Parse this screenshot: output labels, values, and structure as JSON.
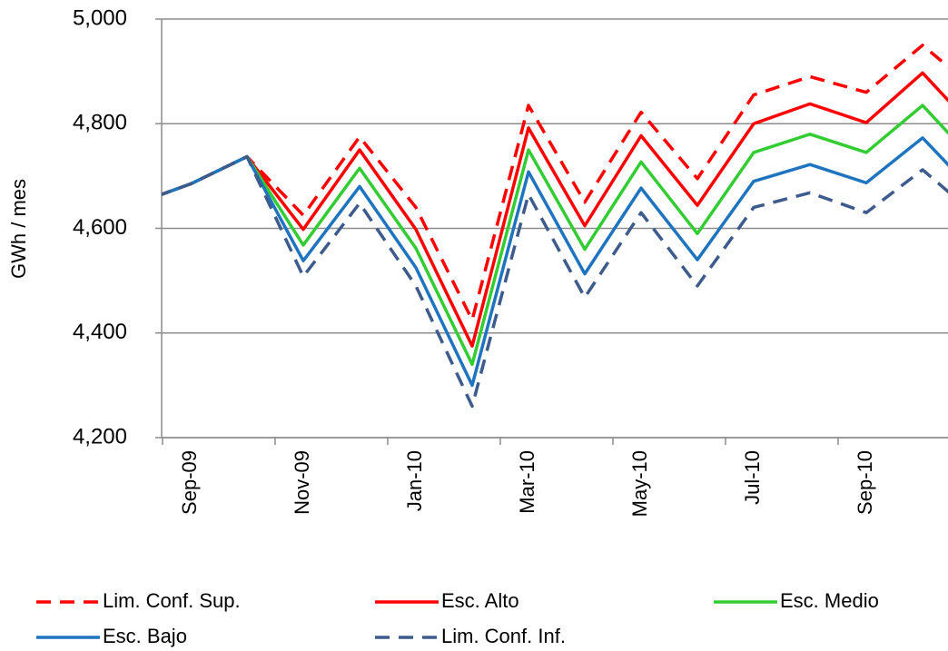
{
  "chart_data": {
    "type": "line",
    "y_label": "GWh / mes",
    "categories": [
      null,
      "Sep-09",
      null,
      "Nov-09",
      null,
      "Jan-10",
      null,
      "Mar-10",
      null,
      "May-10",
      null,
      "Jul-10",
      null,
      "Sep-10",
      null,
      null
    ],
    "series": [
      {
        "name": "Lim. Conf. Sup.",
        "color": "#ff0000",
        "dashed": true,
        "values": [
          4646,
          4685,
          4737,
          4625,
          4775,
          4640,
          4425,
          4835,
          4650,
          4822,
          4695,
          4855,
          4890,
          4860,
          4950,
          4860
        ]
      },
      {
        "name": "Esc. Alto",
        "color": "#ff0000",
        "dashed": false,
        "values": [
          4646,
          4685,
          4737,
          4598,
          4750,
          4598,
          4375,
          4792,
          4605,
          4777,
          4644,
          4800,
          4838,
          4802,
          4897,
          4782
        ]
      },
      {
        "name": "Esc. Medio",
        "color": "#33cc33",
        "dashed": false,
        "values": [
          4646,
          4685,
          4737,
          4568,
          4715,
          4562,
          4340,
          4750,
          4560,
          4727,
          4590,
          4745,
          4780,
          4745,
          4835,
          4720
        ]
      },
      {
        "name": "Esc. Bajo",
        "color": "#1f74c0",
        "dashed": false,
        "values": [
          4646,
          4685,
          4737,
          4538,
          4680,
          4525,
          4300,
          4708,
          4513,
          4677,
          4540,
          4690,
          4722,
          4687,
          4773,
          4660
        ]
      },
      {
        "name": "Lim. Conf. Inf.",
        "color": "#3d5b8c",
        "dashed": true,
        "values": [
          4646,
          4685,
          4737,
          4508,
          4648,
          4490,
          4260,
          4665,
          4468,
          4630,
          4490,
          4640,
          4668,
          4630,
          4712,
          4620
        ]
      }
    ],
    "ylim": [
      4200,
      5000
    ],
    "yticks": [
      {
        "value": 4200,
        "label": "4,200"
      },
      {
        "value": 4400,
        "label": "4,400"
      },
      {
        "value": 4600,
        "label": "4,600"
      },
      {
        "value": 4800,
        "label": "4,800"
      },
      {
        "value": 5000,
        "label": "5,000"
      }
    ],
    "grid": true,
    "legend": "bottom"
  }
}
